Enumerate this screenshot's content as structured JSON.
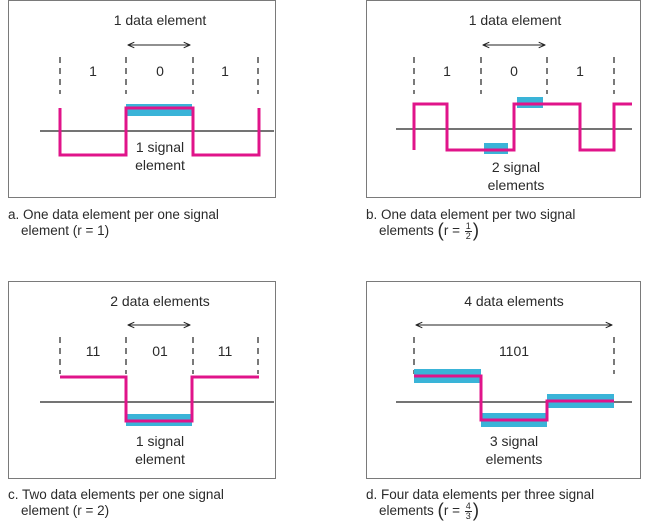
{
  "colors": {
    "signal": "#e0148a",
    "highlight": "#3ab4d8",
    "axis": "#222222",
    "border": "#7a7a7a",
    "text": "#2a2a2a"
  },
  "clipped_header": "",
  "panels": [
    {
      "id": "a",
      "top_label": "1 data element",
      "data_labels": [
        "1",
        "0",
        "1"
      ],
      "signal_label_lines": [
        "1 signal",
        "element"
      ],
      "caption_line1": "a. One data element per one signal",
      "caption_line2": "element (r = 1)"
    },
    {
      "id": "b",
      "top_label": "1 data element",
      "data_labels": [
        "1",
        "0",
        "1"
      ],
      "signal_label_lines": [
        "2 signal",
        "elements"
      ],
      "caption_line1": "b. One data element per two signal",
      "caption_prefix": "elements ",
      "caption_ratio_prefix": "r = ",
      "frac_num": "1",
      "frac_den": "2"
    },
    {
      "id": "c",
      "top_label": "2 data elements",
      "data_labels": [
        "11",
        "01",
        "11"
      ],
      "signal_label_lines": [
        "1 signal",
        "element"
      ],
      "caption_line1": "c. Two data elements per one signal",
      "caption_line2": "element (r = 2)"
    },
    {
      "id": "d",
      "top_label": "4 data elements",
      "data_labels": [
        "1101"
      ],
      "signal_label_lines": [
        "3 signal",
        "elements"
      ],
      "caption_line1": "d. Four data elements per three signal",
      "caption_prefix": "elements ",
      "caption_ratio_prefix": "r = ",
      "frac_num": "4",
      "frac_den": "3"
    }
  ]
}
